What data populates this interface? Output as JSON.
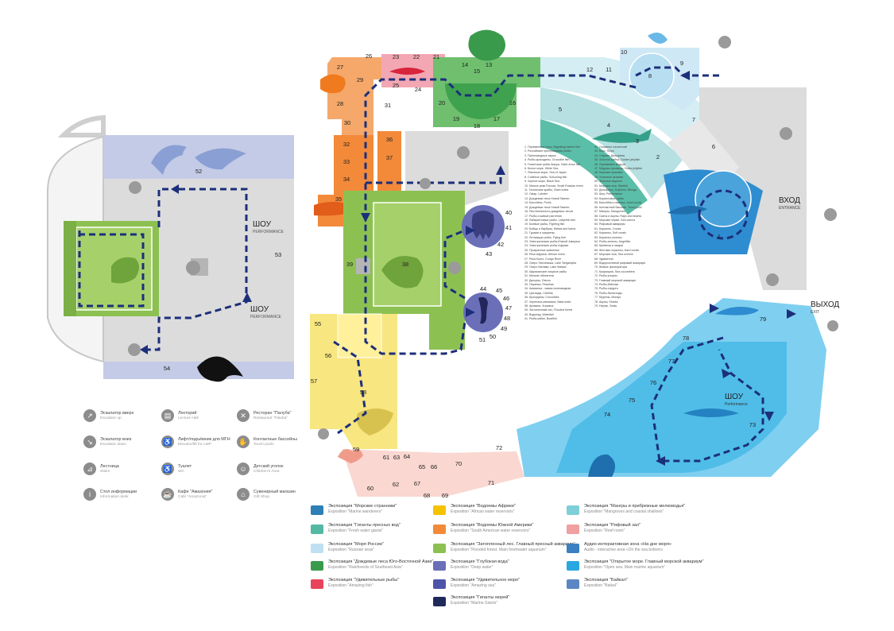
{
  "labels": {
    "show_left_1": "ШОУ",
    "show_left_1_en": "PERFORMANCE",
    "show_left_2": "ШОУ",
    "show_left_2_en": "PERFORMANCE",
    "show_right": "ШОУ",
    "show_right_en": "Performance",
    "entrance_ru": "ВХОД",
    "entrance_en": "ENTRANCE",
    "exit_ru": "ВЫХОД",
    "exit_en": "EXIT"
  },
  "zones": [
    "1",
    "2",
    "3",
    "4",
    "5",
    "6",
    "7",
    "8",
    "9",
    "10",
    "11",
    "12",
    "13",
    "14",
    "15",
    "16",
    "17",
    "18",
    "19",
    "20",
    "21",
    "22",
    "23",
    "24",
    "25",
    "26",
    "27",
    "28",
    "29",
    "30",
    "31",
    "32",
    "33",
    "34",
    "35",
    "36",
    "37",
    "38",
    "39",
    "40",
    "41",
    "42",
    "43",
    "44",
    "45",
    "46",
    "47",
    "48",
    "49",
    "50",
    "51",
    "52",
    "53",
    "54",
    "55",
    "56",
    "57",
    "58",
    "59",
    "60",
    "61",
    "62",
    "63",
    "64",
    "65",
    "66",
    "67",
    "68",
    "69",
    "70",
    "71",
    "72",
    "73",
    "74",
    "75",
    "76",
    "77",
    "78",
    "79"
  ],
  "services": [
    {
      "icon": "escalator-up-icon",
      "glyph": "↗",
      "ru": "Эскалатор вверх",
      "en": "Escalator up"
    },
    {
      "icon": "escalator-down-icon",
      "glyph": "↘",
      "ru": "Эскалатор вниз",
      "en": "Escalator down"
    },
    {
      "icon": "stairs-icon",
      "glyph": "⊿",
      "ru": "Лестница",
      "en": "Stairs"
    },
    {
      "icon": "info-icon",
      "glyph": "i",
      "ru": "Стол информации",
      "en": "Information desk"
    },
    {
      "icon": "lecture-hall-icon",
      "glyph": "▤",
      "ru": "Лекторий",
      "en": "Lecture Hall"
    },
    {
      "icon": "elevator-icon",
      "glyph": "♿",
      "ru": "Лифт/подъёмник для МГН",
      "en": "Elevator/lift for LMP"
    },
    {
      "icon": "wc-icon",
      "glyph": "♿",
      "ru": "Туалет",
      "en": "WC"
    },
    {
      "icon": "cafe-icon",
      "glyph": "☕",
      "ru": "Кафе \"Амазония\"",
      "en": "Cafe \"Amazonia\""
    },
    {
      "icon": "restaurant-icon",
      "glyph": "✕",
      "ru": "Ресторан \"Палуба\"",
      "en": "Restaurant \"Paluba\""
    },
    {
      "icon": "touch-pools-icon",
      "glyph": "✋",
      "ru": "Контактные бассейны",
      "en": "Touch pools"
    },
    {
      "icon": "childrens-area-icon",
      "glyph": "☺",
      "ru": "Детский уголок",
      "en": "Children's Area"
    },
    {
      "icon": "gift-shop-icon",
      "glyph": "⌂",
      "ru": "Сувенирный магазин",
      "en": "Gift Shop"
    }
  ],
  "expositions": [
    {
      "color": "#2e7fb5",
      "ru": "Экспозиция \"Морские странники\"",
      "en": "Exposition \"Marine wanderers\""
    },
    {
      "color": "#55b8a3",
      "ru": "Экспозиция \"Гиганты пресных вод\"",
      "en": "Exposition \"Fresh water giants\""
    },
    {
      "color": "#bfe0f2",
      "ru": "Экспозиция \"Моря России\"",
      "en": "Exposition \"Russian seas\""
    },
    {
      "color": "#3a9a4c",
      "ru": "Экспозиция \"Дождевые леса Юго-Восточной Азии\"",
      "en": "Exposition \"Rainforests of Southeast Asia\""
    },
    {
      "color": "#e8435b",
      "ru": "Экспозиция \"Удивительные рыбы\"",
      "en": "Exposition \"Amazing fish\""
    },
    {
      "color": "#f5c200",
      "ru": "Экспозиция \"Водоемы Африки\"",
      "en": "Exposition \"African water reservoirs\""
    },
    {
      "color": "#f28a3a",
      "ru": "Экспозиция \"Водоемы Южной Америки\"",
      "en": "Exposition \"South American water reservoirs\""
    },
    {
      "color": "#8cc152",
      "ru": "Экспозиция \"Затопленный лес. Главный пресный аквариум\"",
      "en": "Exposition \"Flooded forest. Main freshwater aquarium\""
    },
    {
      "color": "#6a6fb8",
      "ru": "Экспозиция \"Глубокая вода\"",
      "en": "Exposition \"Deep water\""
    },
    {
      "color": "#4e54a8",
      "ru": "Экспозиция \"Удивительное море\"",
      "en": "Exposition \"Amazing sea\""
    },
    {
      "color": "#1f2a5a",
      "ru": "Экспозиция \"Гиганты морей\"",
      "en": "Exposition \"Marine Giants\""
    },
    {
      "color": "#7fcfd8",
      "ru": "Экспозиция \"Мангры и прибрежные мелководья\"",
      "en": "Exposition \"Mangroves and coastal shallows\""
    },
    {
      "color": "#f0a0a0",
      "ru": "Экспозиция \"Рифовый зал\"",
      "en": "Exposition \"Reef room\""
    },
    {
      "color": "#3c7fc2",
      "ru": "Аудио-интерактивная зона «На дне моря»",
      "en": "Audio - interactive area «On the sea bottom»"
    },
    {
      "color": "#29a7e0",
      "ru": "Экспозиция \"Открытое море. Главный морской аквариум\"",
      "en": "Exposition \"Open sea. Main marine aquarium\""
    },
    {
      "color": "#5b86c4",
      "ru": "Экспозиция \"Байкал\"",
      "en": "Exposition \"Baikal\""
    }
  ],
  "list_left": [
    "1. Переменные сезы, Migrating marine fish",
    "2. Российские пресноводные рыбы",
    "3. Пресноводные акулы",
    "4. Рыбы-крокодилы, Crocodile fish",
    "5. Гигантские рыбы Амура, Giant Amur fish",
    "6. Белое море, White Sea",
    "7. Японское море, Sea of Japan",
    "8. Стайные рыбы, Schooling fish",
    "9. Черное море, Black Sea",
    "10. Малые реки России, Small Russian rivers",
    "11. Гигантские крабы, Giant crabs",
    "12. Омар, Lobster",
    "13. Дождевые леса Новой Гвинеи",
    "14. Бассейны, Pools",
    "15. Дождевые леса Новой Гвинеи",
    "16. Растительность дождевых лесов",
    "17. Рыбы и живые растения",
    "18. Лабиринтовые рыбы, Labyrinth fish",
    "19. Боевые рыбы, Fighting fish",
    "20. Бойцы и барбусы, Bettas and barbs",
    "21. Гурами и среднепр.",
    "22. Летающие рыбы, Flying fish",
    "23. Электрические рыбы Южной Америки",
    "24. Электрические рыбы Африки",
    "25. Прозрачные животные",
    "26. Реки Африки, African rivers",
    "27. Река Конго, Congo River",
    "28. Озеро Танганьика, Lake Tanganyika",
    "29. Озеро Малави, Lake Malawi",
    "30. Африканские хищные рыбы",
    "31. Мелкие обитатели",
    "32. Дискусы, Discus",
    "33. Пираньи, Piranhas",
    "34. Амазонка - самая полноводная",
    "35. Цихлиды, Cichlids",
    "36. Крокодилы, Crocodiles",
    "37. Черепахи-матамата, Mata mata",
    "38. Арована, Arowana",
    "39. Затопленный лес, Flooded forest",
    "40. Водопад, Waterfall",
    "41. Рыба-кабан, Boarfish"
  ],
  "list_right": [
    "42. Осьминог гигантский",
    "43. Бокс, Snips",
    "44. Спуиинг Дельфина",
    "45. Золотая рыбка, Golden jellyfish",
    "46. Оранжевые медузы",
    "47. Медузы-луковицы, Bulbs jellyfish",
    "48. Морские крапивы",
    "49. Угольные актинии",
    "50. Зеленые мурены",
    "51. Морские ежи, Starfish",
    "52. Дельфины, Dolphins, Beluga",
    "53. Шоу, Performance",
    "54. Коралловые рыбы",
    "55. Бассейны и мангры, touch pools",
    "56. Контактный бассейн, Touch pool",
    "57. Мангры, Mangroves",
    "58. Скаты и акулы, Rays and sharks",
    "59. Морские черви, Sea worms",
    "60. Рифовый аквариум",
    "61. Кораллы, Corals",
    "62. Кораллы, Soft corals",
    "63. Кораллы-полипы",
    "64. Рыбы-ангелы, Angelfish",
    "65. Креветки и омары",
    "66. Жесткие кораллы, Hard corals",
    "67. Морские ежи, Sea urchins",
    "68. Удивители",
    "69. Водорослевый рифовый аквариум",
    "70. Живые фильтраторы",
    "71. Кукумарии, Sea cucumbers",
    "72. Рыбы-клоуны",
    "73. Главный морской аквариум",
    "74. Рыбы-бабочки",
    "75. Рыбы-хирурги",
    "76. Рыбы-балистоды",
    "77. Мурены, Morays",
    "78. Акулы, Sharks",
    "79. Нерпы, Seals"
  ]
}
